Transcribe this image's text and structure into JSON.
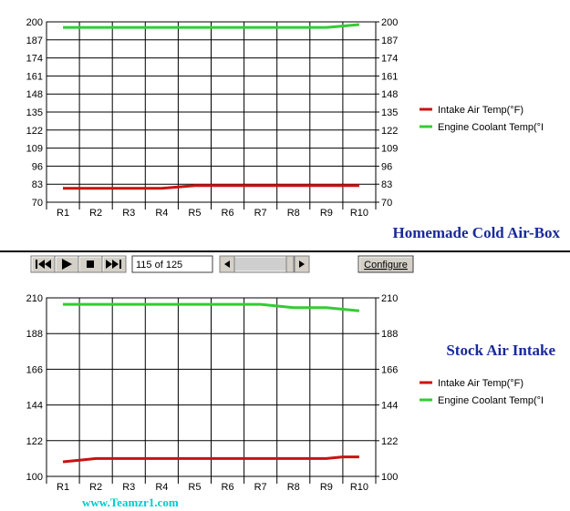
{
  "chart_data": [
    {
      "type": "line",
      "title": "Homemade Cold Air-Box",
      "categories": [
        "R1",
        "R2",
        "R3",
        "R4",
        "R5",
        "R6",
        "R7",
        "R8",
        "R9",
        "R10"
      ],
      "ylim": [
        70,
        200
      ],
      "yticks": [
        70,
        83,
        96,
        109,
        122,
        135,
        148,
        161,
        174,
        187,
        200
      ],
      "grid": true,
      "legend_position": "right",
      "series": [
        {
          "name": "Intake Air Temp(°F)",
          "color": "#cc1111",
          "x": [
            1,
            2,
            3,
            4,
            4.5,
            5,
            6,
            7,
            8,
            9,
            10
          ],
          "values": [
            80,
            80,
            80,
            80,
            81,
            82,
            82,
            82,
            82,
            82,
            82
          ]
        },
        {
          "name": "Engine Coolant Temp(°I",
          "color": "#33cc33",
          "x": [
            1,
            2,
            3,
            4,
            5,
            6,
            7,
            8,
            9,
            9.5,
            10
          ],
          "values": [
            196,
            196,
            196,
            196,
            196,
            196,
            196,
            196,
            196,
            197,
            198
          ]
        }
      ]
    },
    {
      "type": "line",
      "title": "Stock Air Intake",
      "categories": [
        "R1",
        "R2",
        "R3",
        "R4",
        "R5",
        "R6",
        "R7",
        "R8",
        "R9",
        "R10"
      ],
      "ylim": [
        100,
        210
      ],
      "yticks": [
        100,
        122,
        144,
        166,
        188,
        210
      ],
      "grid": true,
      "legend_position": "right",
      "series": [
        {
          "name": "Intake Air Temp(°F)",
          "color": "#cc1111",
          "x": [
            1,
            1.5,
            2,
            3,
            4,
            5,
            6,
            7,
            8,
            9,
            9.5,
            10
          ],
          "values": [
            109,
            110,
            111,
            111,
            111,
            111,
            111,
            111,
            111,
            111,
            112,
            112
          ]
        },
        {
          "name": "Engine Coolant Temp(°I",
          "color": "#33cc33",
          "x": [
            1,
            2,
            3,
            4,
            5,
            6,
            7,
            8,
            9,
            9.5,
            10
          ],
          "values": [
            206,
            206,
            206,
            206,
            206,
            206,
            206,
            204,
            204,
            203,
            202
          ]
        }
      ]
    }
  ],
  "toolbar": {
    "first_icon": "skip-first-icon",
    "play_icon": "play-icon",
    "stop_icon": "stop-icon",
    "last_icon": "skip-last-icon",
    "position": "115 of 125",
    "scroll_left_icon": "arrow-left-icon",
    "scroll_right_icon": "arrow-right-icon",
    "configure_label": "Configure"
  },
  "watermark": "www.Teamzr1.com",
  "colors": {
    "caption": "#1a2a9a",
    "watermark": "#00cccc",
    "separator": "#000000"
  }
}
